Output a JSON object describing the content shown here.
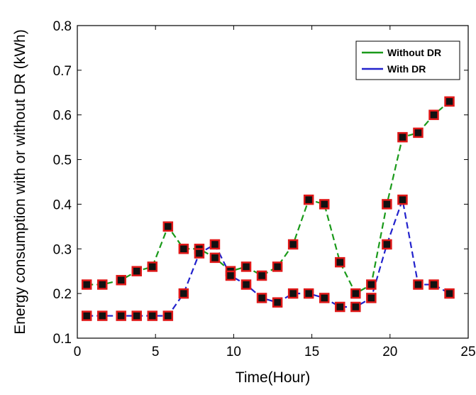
{
  "chart_data": {
    "type": "line",
    "title": "",
    "xlabel": "Time(Hour)",
    "ylabel": "Energy consumption with or without DR (kWh)",
    "xlim": [
      0,
      25
    ],
    "ylim": [
      0.1,
      0.8
    ],
    "xticks": [
      0,
      5,
      10,
      15,
      20,
      25
    ],
    "yticks": [
      0.1,
      0.2,
      0.3,
      0.4,
      0.5,
      0.6,
      0.7,
      0.8
    ],
    "xtick_labels": [
      "0",
      "5",
      "10",
      "15",
      "20",
      "25"
    ],
    "ytick_labels": [
      "0.1",
      "0.2",
      "0.3",
      "0.4",
      "0.5",
      "0.6",
      "0.7",
      "0.8"
    ],
    "grid": false,
    "legend": "top-right",
    "x": [
      0.6,
      1.6,
      2.8,
      3.8,
      4.8,
      5.8,
      6.8,
      7.8,
      8.8,
      9.8,
      10.8,
      11.8,
      12.8,
      13.8,
      14.8,
      15.8,
      16.8,
      17.8,
      18.8,
      19.8,
      20.8,
      21.8,
      22.8,
      23.8
    ],
    "series": [
      {
        "name": "Without DR",
        "color": "#1a9a1a",
        "values": [
          0.22,
          0.22,
          0.23,
          0.25,
          0.26,
          0.35,
          0.3,
          0.3,
          0.28,
          0.25,
          0.26,
          0.24,
          0.26,
          0.31,
          0.41,
          0.4,
          0.27,
          0.2,
          0.22,
          0.4,
          0.55,
          0.56,
          0.6,
          0.63
        ]
      },
      {
        "name": "With DR",
        "color": "#2222cc",
        "values": [
          0.15,
          0.15,
          0.15,
          0.15,
          0.15,
          0.15,
          0.2,
          0.29,
          0.31,
          0.24,
          0.22,
          0.19,
          0.18,
          0.2,
          0.2,
          0.19,
          0.17,
          0.17,
          0.19,
          0.31,
          0.41,
          0.22,
          0.22,
          0.2
        ]
      }
    ],
    "marker": {
      "face_color": "#111111",
      "edge_color": "#e01818"
    }
  }
}
